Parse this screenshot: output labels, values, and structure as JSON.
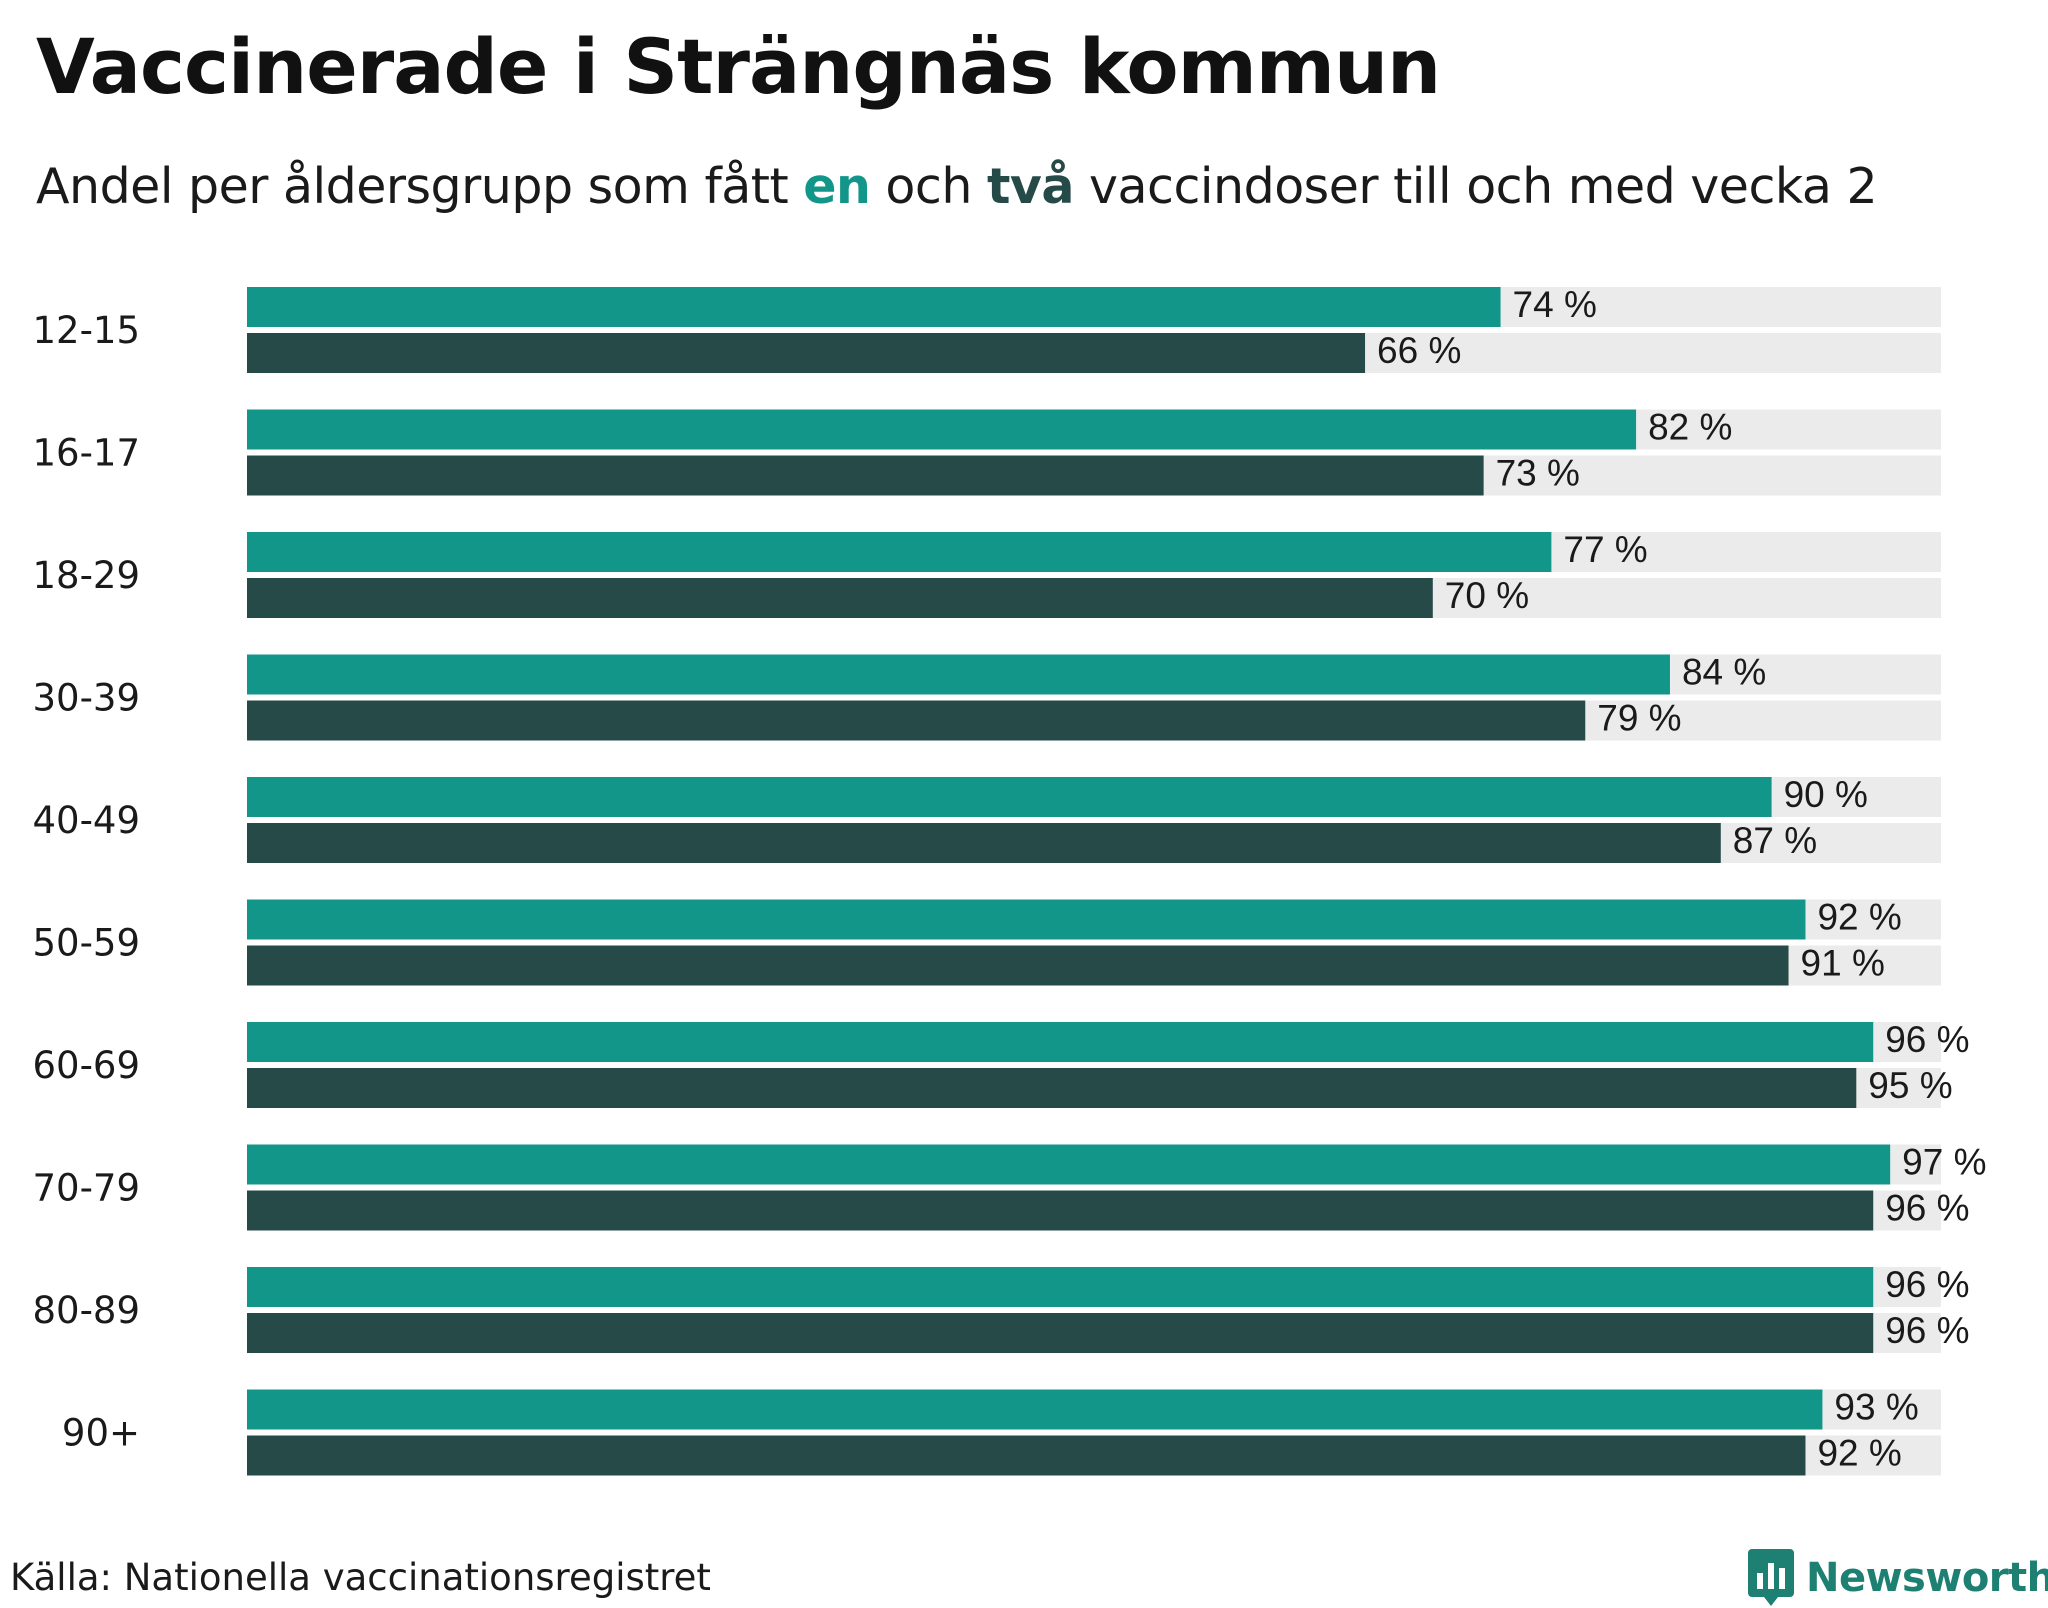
{
  "title": "Vaccinerade i Strängnäs kommun",
  "subtitle": {
    "part1": "Andel per åldersgrupp som fått ",
    "highlight1": "en",
    "part2": " och ",
    "highlight2": "två",
    "part3": " vaccindoser till och med vecka 2"
  },
  "colors": {
    "dose1": "#13968a",
    "dose2": "#264a48",
    "track": "#ebebeb",
    "logo": "#1e7f73"
  },
  "chart_data": {
    "type": "bar",
    "orientation": "horizontal",
    "title": "Vaccinerade i Strängnäs kommun",
    "xlim": [
      0,
      100
    ],
    "grid": false,
    "categories": [
      "12-15",
      "16-17",
      "18-29",
      "30-39",
      "40-49",
      "50-59",
      "60-69",
      "70-79",
      "80-89",
      "90+"
    ],
    "series": [
      {
        "name": "en",
        "values": [
          74,
          82,
          77,
          84,
          90,
          92,
          96,
          97,
          96,
          93
        ],
        "labels": [
          "74 %",
          "82 %",
          "77 %",
          "84 %",
          "90 %",
          "92 %",
          "96 %",
          "97 %",
          "96 %",
          "93 %"
        ]
      },
      {
        "name": "två",
        "values": [
          66,
          73,
          70,
          79,
          87,
          91,
          95,
          96,
          96,
          92
        ],
        "labels": [
          "66 %",
          "73 %",
          "70 %",
          "79 %",
          "87 %",
          "91 %",
          "95 %",
          "96 %",
          "96 %",
          "92 %"
        ]
      }
    ]
  },
  "source": "Källa: Nationella vaccinationsregistret",
  "logo": {
    "text": "Newsworthy",
    "icon": "bar-chart-speech-bubble-icon"
  }
}
